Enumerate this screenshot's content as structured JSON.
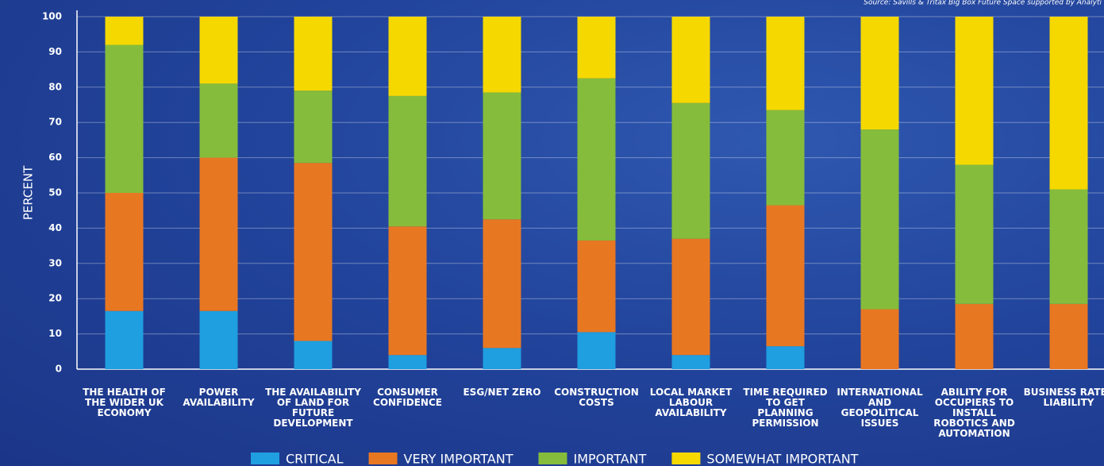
{
  "chart_data": {
    "type": "stacked_bar",
    "source": "Source: Savills & Tritax Big Box Future Space supported by Analyti",
    "y_label": "PERCENT",
    "categories": [
      "THE HEALTH OF THE WIDER UK ECONOMY",
      "POWER AVAILABILITY",
      "THE AVAILABILITY OF LAND FOR FUTURE DEVELOPMENT",
      "CONSUMER CONFIDENCE",
      "ESG/NET ZERO",
      "CONSTRUCTION COSTS",
      "LOCAL MARKET LABOUR AVAILABILITY",
      "TIME REQUIRED TO GET PLANNING PERMISSION",
      "INTERNATIONAL AND GEOPOLITICAL ISSUES",
      "ABILITY FOR OCCUPIERS TO INSTALL ROBOTICS AND AUTOMATION",
      "BUSINESS RATES LIABILITY"
    ],
    "series": [
      {
        "name": "CRITICAL",
        "color": "#1f9ee0",
        "values": [
          16.5,
          16.5,
          8,
          4,
          6,
          10.5,
          4,
          6.5,
          0,
          0,
          0
        ]
      },
      {
        "name": "VERY IMPORTANT",
        "color": "#e87722",
        "values": [
          33.5,
          43.5,
          50.5,
          36.5,
          36.5,
          26,
          33,
          40,
          17,
          18.5,
          18.5
        ]
      },
      {
        "name": "IMPORTANT",
        "color": "#86bc3b",
        "values": [
          42,
          21,
          20.5,
          37,
          36,
          46,
          38.5,
          27,
          51,
          39.5,
          32.5
        ]
      },
      {
        "name": "SOMEWHAT IMPORTANT",
        "color": "#f5d800",
        "values": [
          8,
          19,
          21,
          22.5,
          21.5,
          17.5,
          24.5,
          26.5,
          32,
          42,
          49
        ]
      }
    ],
    "ylim": [
      0,
      100
    ],
    "yticks": [
      0,
      10,
      20,
      30,
      40,
      50,
      60,
      70,
      80,
      90,
      100
    ],
    "grid": true
  }
}
